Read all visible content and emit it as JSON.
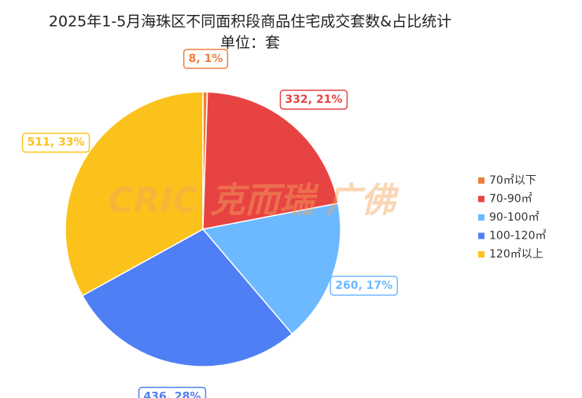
{
  "chart_data": {
    "type": "pie",
    "title": "2025年1-5月海珠区不同面积段商品住宅成交套数&占比统计",
    "subtitle": "单位：套",
    "watermark": "CRIC 克而瑞 广佛",
    "categories": [
      "70㎡以下",
      "70-90㎡",
      "90-100㎡",
      "100-120㎡",
      "120㎡以上"
    ],
    "values": [
      8,
      332,
      260,
      436,
      511
    ],
    "value_labels": [
      "8, 1%",
      "332, 21%",
      "260, 17%",
      "436, 28%",
      "511, 33%"
    ],
    "colors": [
      "#f07f3c",
      "#e84343",
      "#6db9ff",
      "#4f7ff4",
      "#fcc21c"
    ],
    "legend": "right"
  }
}
